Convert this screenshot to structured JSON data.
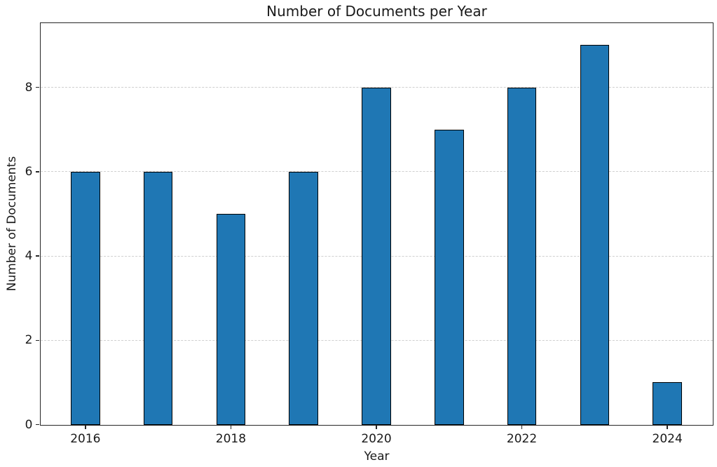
{
  "chart_data": {
    "type": "bar",
    "title": "Number of Documents per Year",
    "xlabel": "Year",
    "ylabel": "Number of Documents",
    "categories": [
      2016,
      2017,
      2018,
      2019,
      2020,
      2021,
      2022,
      2023,
      2024
    ],
    "values": [
      6,
      6,
      5,
      6,
      8,
      7,
      8,
      9,
      1
    ],
    "xticks": [
      "2016",
      "2018",
      "2020",
      "2022",
      "2024"
    ],
    "xtick_positions": [
      2016,
      2018,
      2020,
      2022,
      2024
    ],
    "yticks": [
      0,
      2,
      4,
      6,
      8
    ],
    "xlim": [
      2015.38,
      2024.62
    ],
    "ylim": [
      0,
      9.53
    ],
    "bar_width": 0.4,
    "grid": "horizontal-dashed",
    "legend": "none",
    "colors": {
      "bar_fill": "#1f77b4",
      "bar_edge": "#000000",
      "grid": "#cfcfcf",
      "axis": "#262626",
      "text": "#1a1a1a",
      "background": "#ffffff"
    }
  }
}
